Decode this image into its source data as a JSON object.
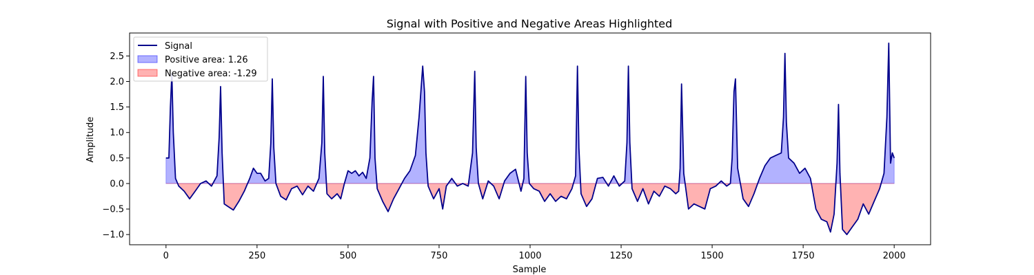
{
  "chart_data": {
    "type": "line",
    "title": "Signal with Positive and Negative Areas Highlighted",
    "xlabel": "Sample",
    "ylabel": "Amplitude",
    "xlim": [
      -100,
      2100
    ],
    "ylim": [
      -1.2,
      2.95
    ],
    "xticks": [
      0,
      250,
      500,
      750,
      1000,
      1250,
      1500,
      1750,
      2000
    ],
    "yticks": [
      -1.0,
      -0.5,
      0.0,
      0.5,
      1.0,
      1.5,
      2.0,
      2.5
    ],
    "xtick_labels": [
      "0",
      "250",
      "500",
      "750",
      "1000",
      "1250",
      "1500",
      "1750",
      "2000"
    ],
    "ytick_labels": [
      "−1.0",
      "−0.5",
      "0.0",
      "0.5",
      "1.0",
      "1.5",
      "2.0",
      "2.5"
    ],
    "grid": false,
    "legend_position": "top-left",
    "series": [
      {
        "name": "Signal",
        "color": "#00008b",
        "x": [
          0,
          8,
          12,
          16,
          20,
          26,
          35,
          50,
          65,
          80,
          95,
          110,
          125,
          140,
          146,
          150,
          154,
          160,
          170,
          185,
          200,
          215,
          230,
          240,
          250,
          260,
          272,
          282,
          288,
          292,
          296,
          302,
          315,
          330,
          345,
          360,
          375,
          390,
          405,
          420,
          428,
          432,
          436,
          442,
          455,
          470,
          480,
          490,
          500,
          510,
          520,
          530,
          540,
          550,
          560,
          566,
          570,
          574,
          580,
          595,
          610,
          625,
          640,
          655,
          670,
          685,
          695,
          705,
          710,
          714,
          720,
          735,
          750,
          760,
          770,
          785,
          800,
          815,
          830,
          842,
          848,
          852,
          858,
          870,
          885,
          900,
          915,
          930,
          945,
          960,
          975,
          983,
          988,
          992,
          998,
          1010,
          1025,
          1040,
          1055,
          1070,
          1085,
          1100,
          1115,
          1125,
          1130,
          1134,
          1140,
          1155,
          1170,
          1185,
          1200,
          1215,
          1230,
          1245,
          1260,
          1266,
          1270,
          1274,
          1280,
          1295,
          1310,
          1325,
          1340,
          1355,
          1370,
          1385,
          1400,
          1408,
          1412,
          1416,
          1422,
          1435,
          1450,
          1465,
          1480,
          1495,
          1510,
          1525,
          1540,
          1550,
          1555,
          1560,
          1564,
          1570,
          1585,
          1600,
          1615,
          1630,
          1645,
          1660,
          1675,
          1690,
          1696,
          1700,
          1704,
          1710,
          1725,
          1740,
          1755,
          1770,
          1785,
          1800,
          1815,
          1825,
          1835,
          1843,
          1847,
          1851,
          1858,
          1870,
          1885,
          1900,
          1915,
          1930,
          1945,
          1960,
          1972,
          1980,
          1985,
          1990,
          1995,
          2000
        ],
        "y": [
          0.5,
          0.5,
          1.5,
          2.15,
          1.0,
          0.1,
          -0.05,
          -0.15,
          -0.3,
          -0.15,
          0.0,
          0.05,
          -0.05,
          0.15,
          0.9,
          1.9,
          0.6,
          -0.4,
          -0.45,
          -0.52,
          -0.35,
          -0.15,
          0.1,
          0.3,
          0.2,
          0.2,
          0.05,
          0.1,
          0.8,
          2.05,
          0.7,
          0.0,
          -0.25,
          -0.32,
          -0.1,
          -0.05,
          -0.22,
          -0.05,
          -0.15,
          0.1,
          0.8,
          2.1,
          0.6,
          -0.2,
          -0.3,
          -0.2,
          -0.3,
          0.0,
          0.25,
          0.2,
          0.25,
          0.15,
          0.22,
          0.1,
          0.5,
          1.6,
          2.1,
          0.5,
          -0.1,
          -0.35,
          -0.55,
          -0.3,
          -0.1,
          0.1,
          0.25,
          0.55,
          1.3,
          2.3,
          1.8,
          0.6,
          -0.05,
          -0.3,
          -0.1,
          -0.5,
          -0.05,
          0.1,
          -0.05,
          0.0,
          -0.05,
          0.6,
          2.2,
          0.7,
          0.0,
          -0.3,
          0.05,
          -0.05,
          -0.3,
          0.05,
          0.2,
          0.28,
          -0.15,
          0.1,
          2.1,
          0.6,
          0.0,
          -0.1,
          -0.15,
          -0.35,
          -0.2,
          -0.35,
          -0.25,
          -0.3,
          -0.1,
          0.15,
          2.3,
          0.7,
          -0.2,
          -0.45,
          -0.3,
          0.1,
          0.12,
          -0.05,
          0.15,
          -0.05,
          0.05,
          0.8,
          2.3,
          0.8,
          -0.1,
          -0.35,
          -0.1,
          -0.4,
          -0.15,
          -0.25,
          -0.05,
          -0.1,
          -0.2,
          -0.15,
          0.3,
          1.95,
          0.2,
          -0.5,
          -0.4,
          -0.45,
          -0.5,
          -0.1,
          -0.05,
          0.05,
          -0.05,
          0.0,
          0.5,
          1.8,
          2.05,
          0.3,
          -0.3,
          -0.45,
          -0.2,
          0.1,
          0.35,
          0.5,
          0.55,
          0.6,
          1.3,
          2.55,
          1.2,
          0.5,
          0.4,
          0.2,
          0.3,
          0.1,
          -0.5,
          -0.7,
          -0.75,
          -0.95,
          -0.6,
          0.4,
          1.55,
          0.2,
          -0.9,
          -1.0,
          -0.85,
          -0.7,
          -0.4,
          -0.6,
          -0.35,
          -0.1,
          0.2,
          1.3,
          2.75,
          0.4,
          0.6,
          0.5
        ]
      }
    ],
    "areas": [
      {
        "name": "Positive area: 1.26",
        "color": "#0000ff",
        "opacity": 0.3
      },
      {
        "name": "Negative area: -1.29",
        "color": "#ff0000",
        "opacity": 0.3
      }
    ]
  }
}
